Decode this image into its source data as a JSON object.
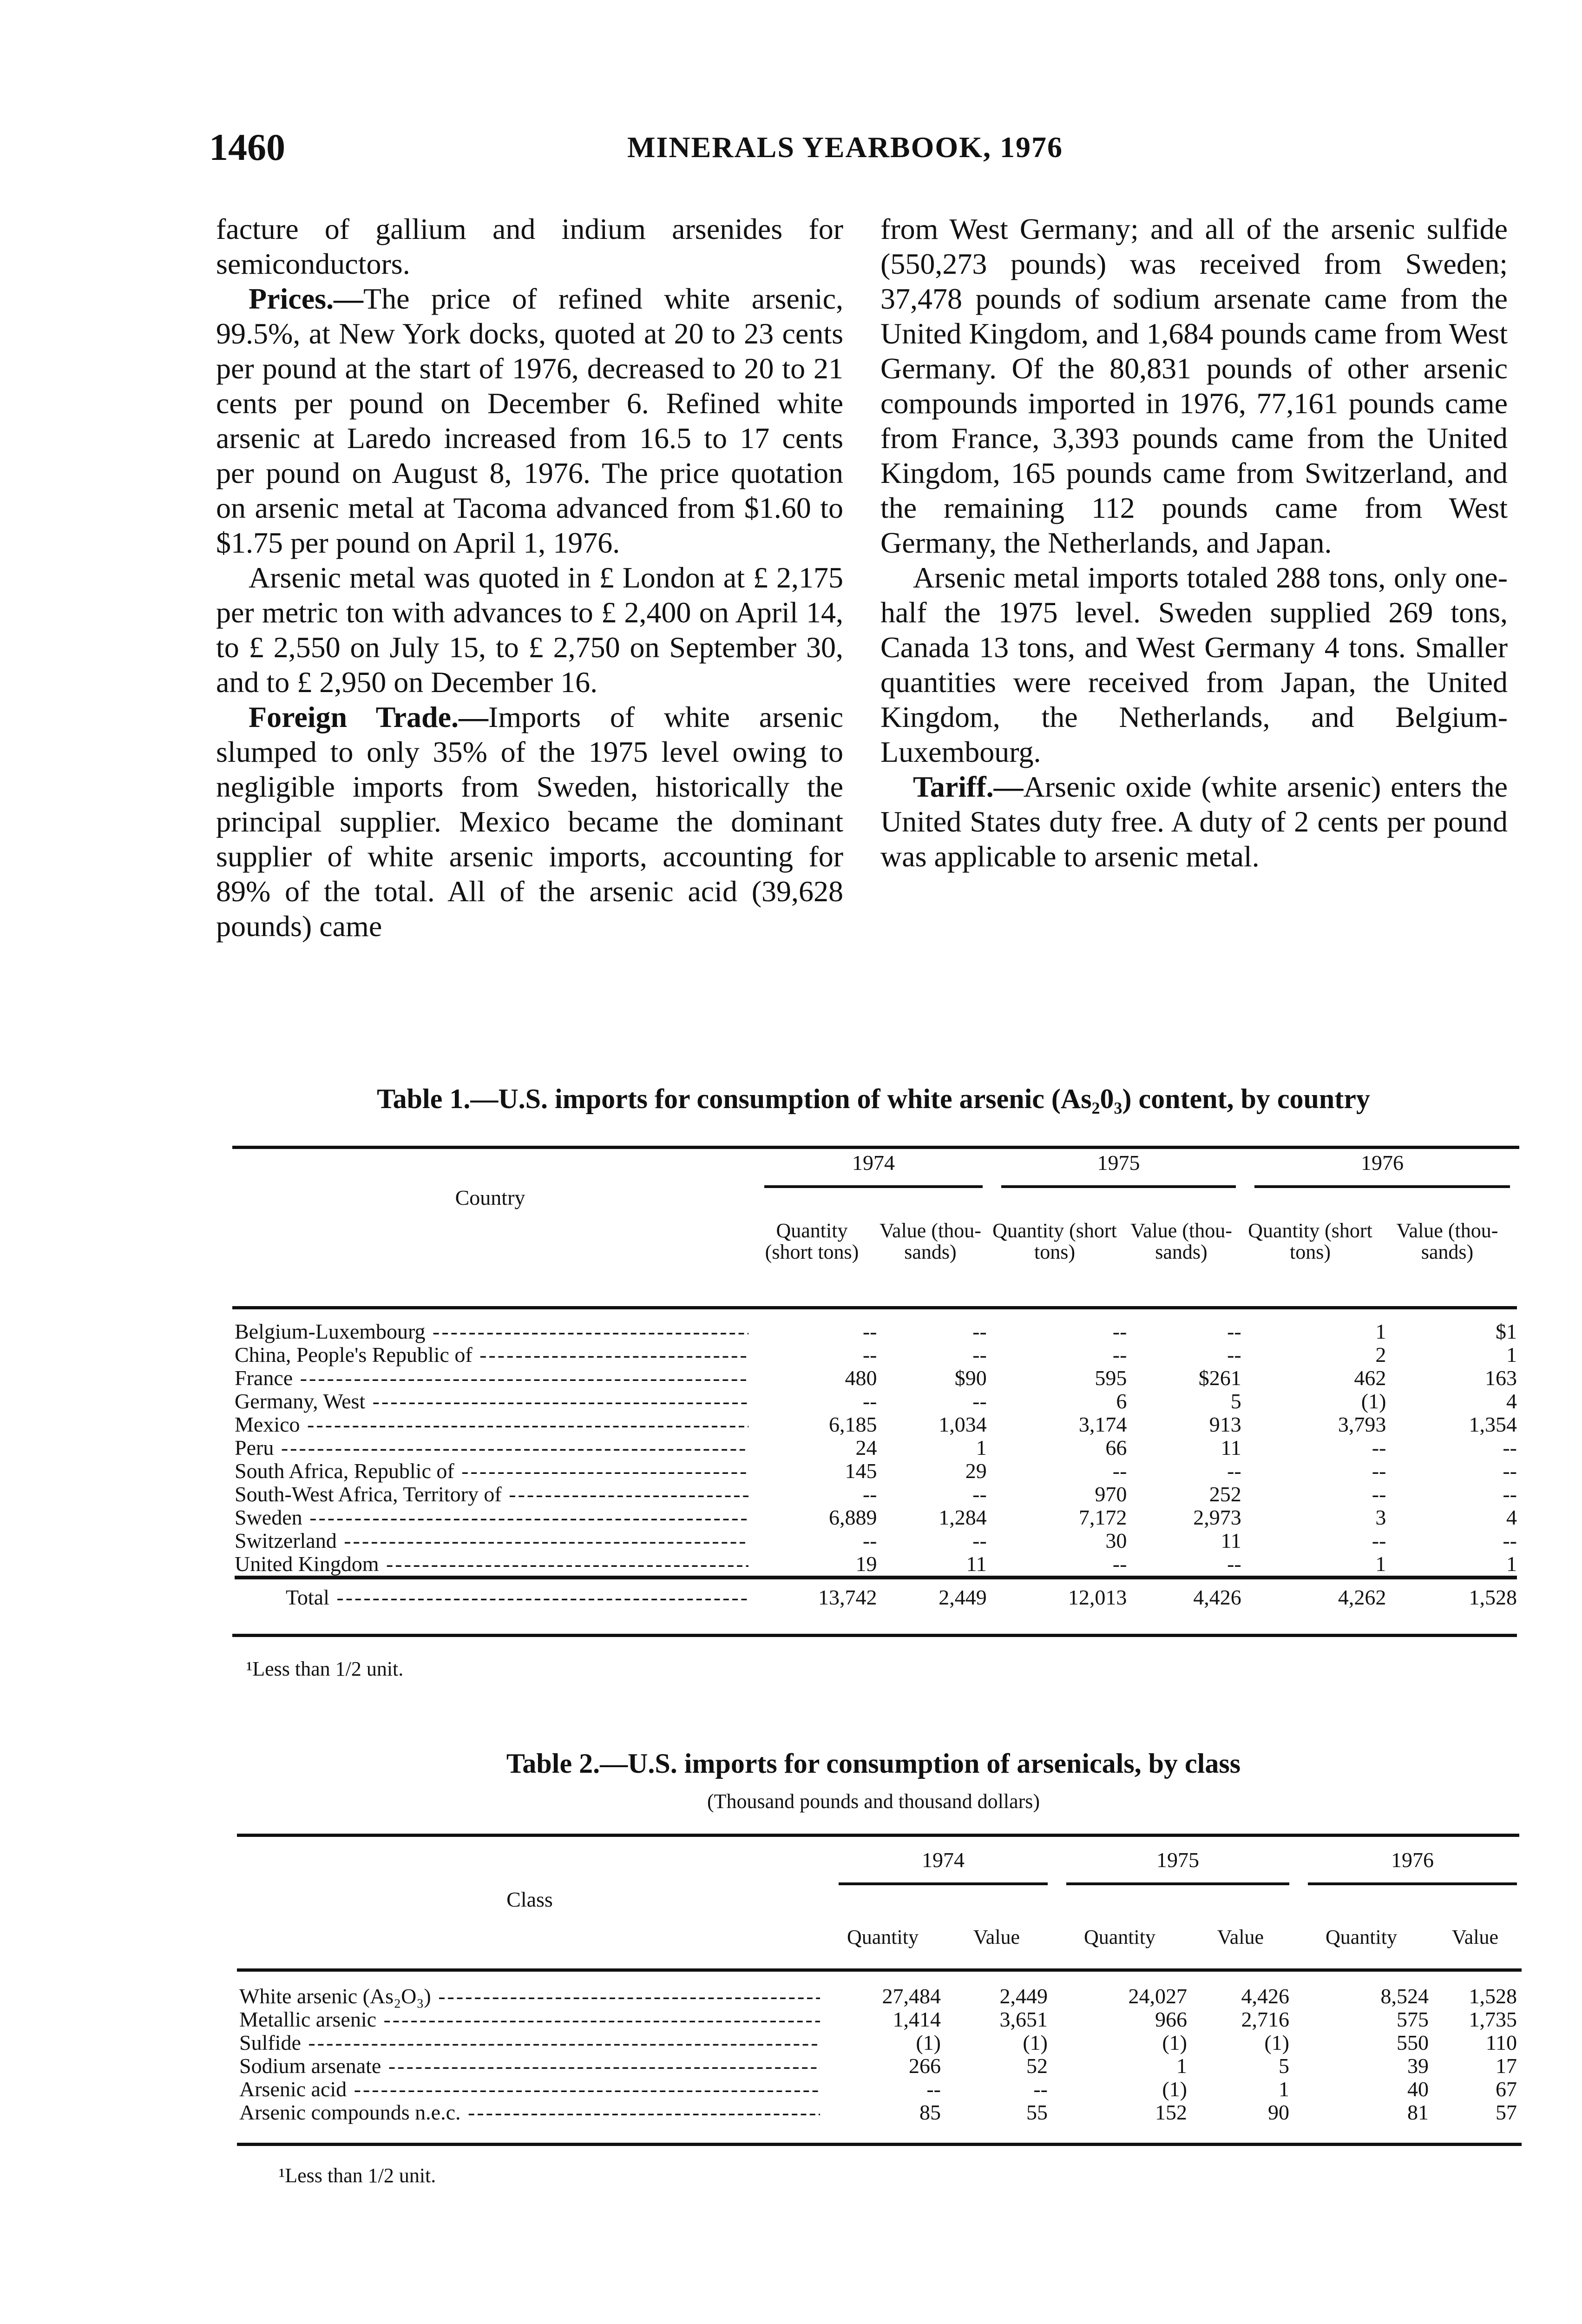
{
  "header": {
    "page_number": "1460",
    "running_title": "MINERALS YEARBOOK, 1976"
  },
  "left_column": [
    {
      "lead": "",
      "text": "facture of gallium and indium arsenides for semiconductors."
    },
    {
      "lead": "Prices.—",
      "text": "The price of refined white arsenic, 99.5%, at New York docks, quoted at 20 to 23 cents per pound at the start of 1976, decreased to 20 to 21 cents per pound on December 6. Refined white arsenic at Laredo increased from 16.5 to 17 cents per pound on August 8, 1976. The price quotation on arsenic metal at Tacoma advanced from $1.60 to $1.75 per pound on April 1, 1976."
    },
    {
      "lead": "",
      "text": "Arsenic metal was quoted in £ London at £ 2,175 per metric ton with advances to £ 2,400 on April 14, to £ 2,550 on July 15, to £ 2,750 on September 30, and to £ 2,950 on December 16."
    },
    {
      "lead": "Foreign Trade.—",
      "text": "Imports of white arsenic slumped to only 35% of the 1975 level owing to negligible imports from Sweden, historically the principal supplier. Mexico became the dominant supplier of white arsenic imports, accounting for 89% of the total. All of the arsenic acid (39,628 pounds) came"
    }
  ],
  "right_column": [
    {
      "lead": "",
      "text": "from West Germany; and all of the arsenic sulfide (550,273 pounds) was received from Sweden; 37,478 pounds of sodium arsenate came from the United Kingdom, and 1,684 pounds came from West Germany. Of the 80,831 pounds of other arsenic compounds imported in 1976, 77,161 pounds came from France, 3,393 pounds came from the United Kingdom, 165 pounds came from Switzerland, and the remaining 112 pounds came from West Germany, the Netherlands, and Japan."
    },
    {
      "lead": "",
      "text": "Arsenic metal imports totaled 288 tons, only one-half the 1975 level. Sweden supplied 269 tons, Canada 13 tons, and West Germany 4 tons. Smaller quantities were received from Japan, the United Kingdom, the Netherlands, and Belgium-Luxembourg."
    },
    {
      "lead": "Tariff.—",
      "text": "Arsenic oxide (white arsenic) enters the United States duty free. A duty of 2 cents per pound was applicable to arsenic metal."
    }
  ],
  "table1": {
    "title": "Table 1.—U.S. imports for consumption of white arsenic (As₂0₃) content, by country",
    "col_label": "Country",
    "years": [
      "1974",
      "1975",
      "1976"
    ],
    "sub_headers": [
      "Quantity (short tons)",
      "Value (thou-sands)",
      "Quantity (short tons)",
      "Value (thou-sands)",
      "Quantity (short tons)",
      "Value (thou-sands)"
    ],
    "rows": [
      {
        "label": "Belgium-Luxembourg",
        "values": [
          "--",
          "--",
          "--",
          "--",
          "1",
          "$1"
        ]
      },
      {
        "label": "China, People's Republic of",
        "values": [
          "--",
          "--",
          "--",
          "--",
          "2",
          "1"
        ]
      },
      {
        "label": "France",
        "values": [
          "480",
          "$90",
          "595",
          "$261",
          "462",
          "163"
        ]
      },
      {
        "label": "Germany, West",
        "values": [
          "--",
          "--",
          "6",
          "5",
          "(1)",
          "4"
        ]
      },
      {
        "label": "Mexico",
        "values": [
          "6,185",
          "1,034",
          "3,174",
          "913",
          "3,793",
          "1,354"
        ]
      },
      {
        "label": "Peru",
        "values": [
          "24",
          "1",
          "66",
          "11",
          "--",
          "--"
        ]
      },
      {
        "label": "South Africa, Republic of",
        "values": [
          "145",
          "29",
          "--",
          "--",
          "--",
          "--"
        ]
      },
      {
        "label": "South-West Africa, Territory of",
        "values": [
          "--",
          "--",
          "970",
          "252",
          "--",
          "--"
        ]
      },
      {
        "label": "Sweden",
        "values": [
          "6,889",
          "1,284",
          "7,172",
          "2,973",
          "3",
          "4"
        ]
      },
      {
        "label": "Switzerland",
        "values": [
          "--",
          "--",
          "30",
          "11",
          "--",
          "--"
        ]
      },
      {
        "label": "United Kingdom",
        "values": [
          "19",
          "11",
          "--",
          "--",
          "1",
          "1"
        ]
      }
    ],
    "total": {
      "label": "Total",
      "values": [
        "13,742",
        "2,449",
        "12,013",
        "4,426",
        "4,262",
        "1,528"
      ]
    },
    "footnote": "¹Less than 1/2 unit."
  },
  "table2": {
    "title": "Table 2.—U.S. imports for consumption of arsenicals, by class",
    "subtitle": "(Thousand pounds and thousand dollars)",
    "col_label": "Class",
    "years": [
      "1974",
      "1975",
      "1976"
    ],
    "sub_headers": [
      "Quantity",
      "Value",
      "Quantity",
      "Value",
      "Quantity",
      "Value"
    ],
    "rows": [
      {
        "label": "White arsenic (As₂O₃)",
        "values": [
          "27,484",
          "2,449",
          "24,027",
          "4,426",
          "8,524",
          "1,528"
        ]
      },
      {
        "label": "Metallic arsenic",
        "values": [
          "1,414",
          "3,651",
          "966",
          "2,716",
          "575",
          "1,735"
        ]
      },
      {
        "label": "Sulfide",
        "values": [
          "(1)",
          "(1)",
          "(1)",
          "(1)",
          "550",
          "110"
        ]
      },
      {
        "label": "Sodium arsenate",
        "values": [
          "266",
          "52",
          "1",
          "5",
          "39",
          "17"
        ]
      },
      {
        "label": "Arsenic acid",
        "values": [
          "--",
          "--",
          "(1)",
          "1",
          "40",
          "67"
        ]
      },
      {
        "label": "Arsenic compounds n.e.c.",
        "values": [
          "85",
          "55",
          "152",
          "90",
          "81",
          "57"
        ]
      }
    ],
    "footnote": "¹Less than 1/2 unit."
  }
}
